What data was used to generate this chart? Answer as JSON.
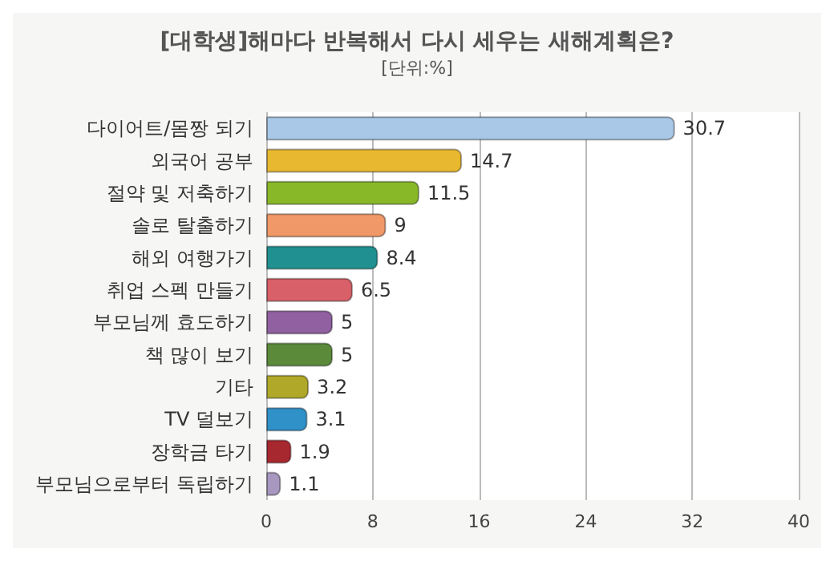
{
  "chart_data": {
    "type": "bar",
    "orientation": "horizontal",
    "title": "[대학생]해마다 반복해서 다시 세우는 새해계획은?",
    "subtitle": "[단위:%]",
    "categories": [
      "다이어트/몸짱 되기",
      "외국어 공부",
      "절약 및 저축하기",
      "솔로 탈출하기",
      "해외 여행가기",
      "취업 스펙 만들기",
      "부모님께 효도하기",
      "책 많이 보기",
      "기타",
      "TV 덜보기",
      "장학금 타기",
      "부모님으로부터 독립하기"
    ],
    "values": [
      30.7,
      14.7,
      11.5,
      9,
      8.4,
      6.5,
      5,
      5,
      3.2,
      3.1,
      1.9,
      1.1
    ],
    "colors": [
      "#a9c8e8",
      "#e8b830",
      "#88b828",
      "#f09868",
      "#209090",
      "#d86068",
      "#9060a0",
      "#5a8a3a",
      "#b0a828",
      "#3090c8",
      "#a82830",
      "#a898c0"
    ],
    "xlim": [
      0,
      40
    ],
    "xticks": [
      0,
      8,
      16,
      24,
      32,
      40
    ],
    "grid": "x",
    "data_labels": true
  }
}
